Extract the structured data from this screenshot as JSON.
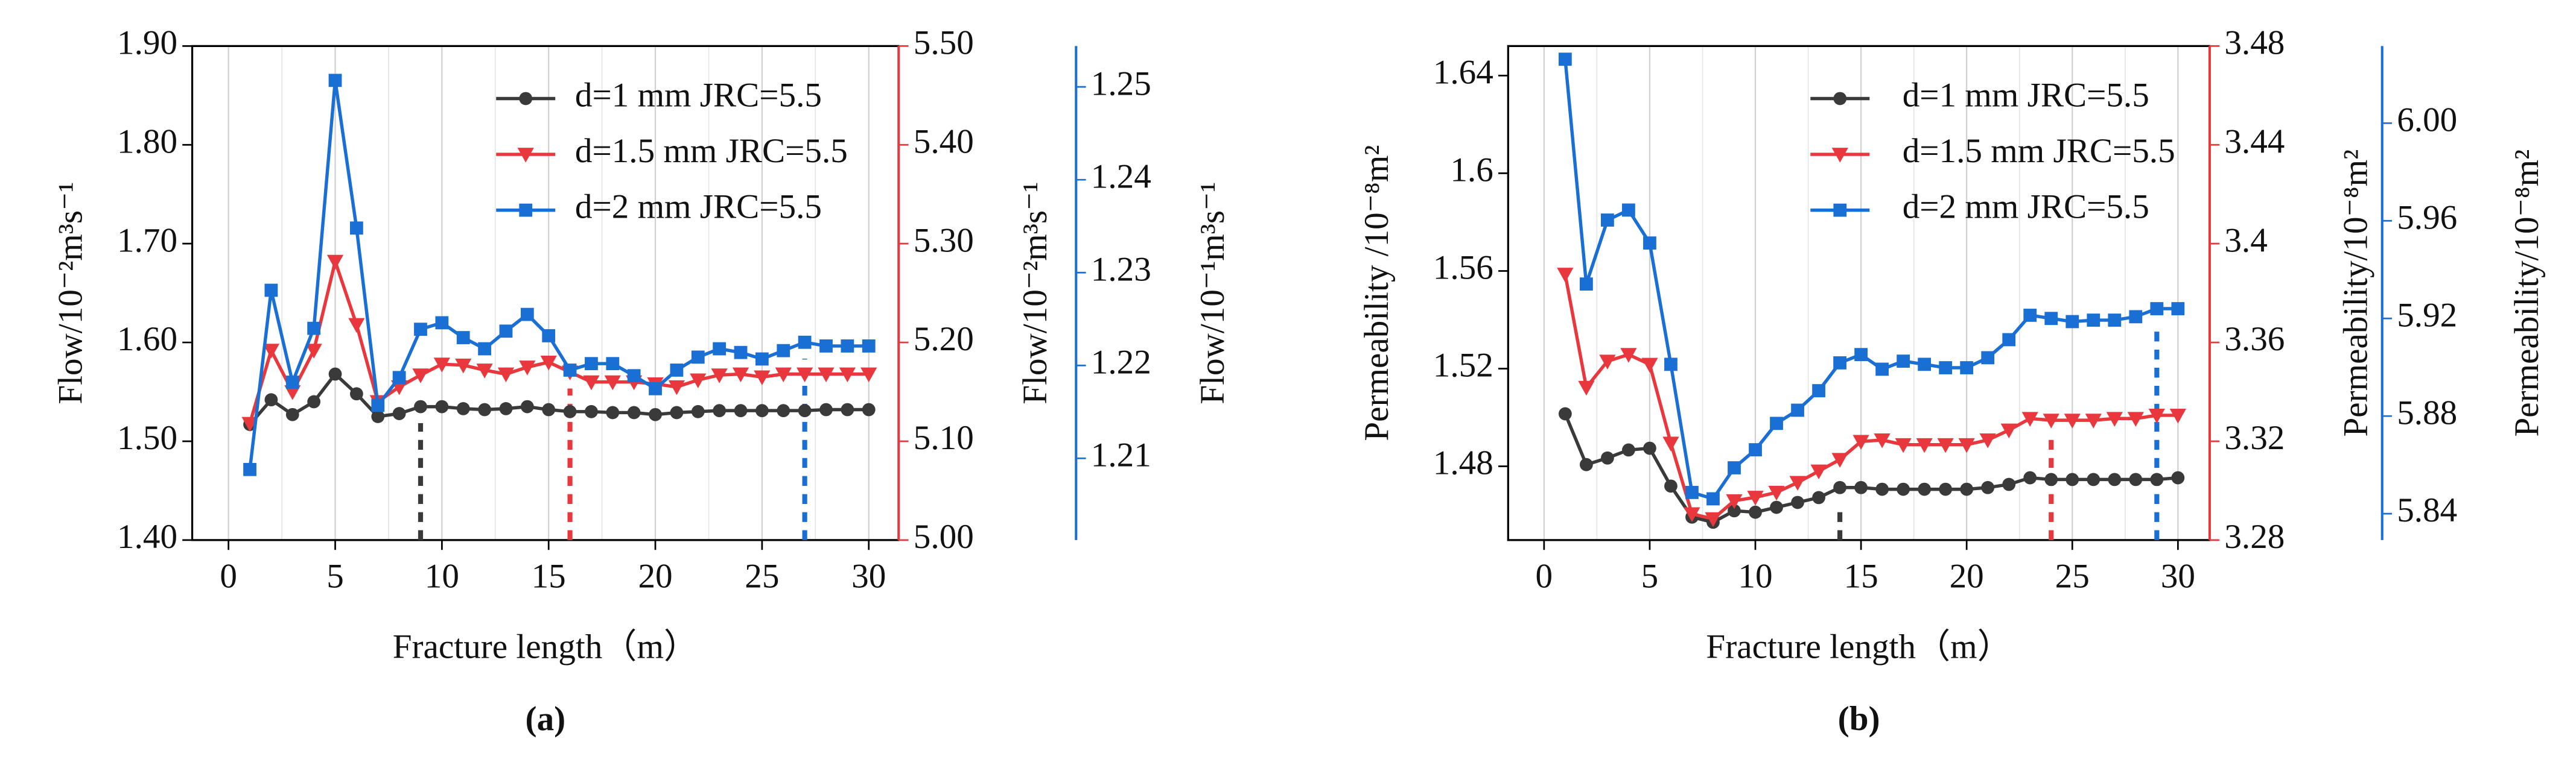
{
  "chart_data": [
    {
      "type": "line",
      "caption": "(a)",
      "xlabel": "Fracture length（m）",
      "ylabel": "Flow/10⁻²m³s⁻¹",
      "y2label": "Flow/10⁻²m³s⁻¹",
      "y3label": "Flow/10⁻¹m³s⁻¹",
      "x": [
        1,
        2,
        3,
        4,
        5,
        6,
        7,
        8,
        9,
        10,
        11,
        12,
        13,
        14,
        15,
        16,
        17,
        18,
        19,
        20,
        21,
        22,
        23,
        24,
        25,
        26,
        27,
        28,
        29,
        30
      ],
      "xlim": [
        -1.7,
        31.4
      ],
      "xticks": [
        0,
        5,
        10,
        15,
        20,
        25,
        30
      ],
      "ylim": [
        1.4,
        1.9
      ],
      "yticks": [
        {
          "value": 1.4,
          "label": "1.40"
        },
        {
          "value": 1.5,
          "label": "1.50"
        },
        {
          "value": 1.6,
          "label": "1.60"
        },
        {
          "value": 1.7,
          "label": "1.70"
        },
        {
          "value": 1.8,
          "label": "1.80"
        },
        {
          "value": 1.9,
          "label": "1.90"
        }
      ],
      "y2lim": [
        5.0,
        5.5
      ],
      "y2ticks": [
        {
          "value": 5,
          "label": "5.00"
        },
        {
          "value": 5.1,
          "label": "5.10"
        },
        {
          "value": 5.2,
          "label": "5.20"
        },
        {
          "value": 5.3,
          "label": "5.30"
        },
        {
          "value": 5.4,
          "label": "5.40"
        },
        {
          "value": 5.5,
          "label": "5.50"
        }
      ],
      "y3lim": [
        1.2012,
        1.2544
      ],
      "y3ticks": [
        1.21,
        1.22,
        1.23,
        1.24,
        1.25
      ],
      "grid": true,
      "markers_x": [
        9,
        16,
        27
      ],
      "series": [
        {
          "name": "d=1 mm JRC=5.5",
          "color": "#3a3a3a",
          "marker": "circle",
          "axis": "y",
          "values": [
            1.517,
            1.542,
            1.527,
            1.54,
            1.568,
            1.548,
            1.525,
            1.528,
            1.535,
            1.535,
            1.533,
            1.532,
            1.533,
            1.535,
            1.532,
            1.53,
            1.53,
            1.529,
            1.529,
            1.527,
            1.529,
            1.53,
            1.531,
            1.531,
            1.531,
            1.531,
            1.531,
            1.532,
            1.532,
            1.532
          ]
        },
        {
          "name": "d=1.5 mm JRC=5.5",
          "color": "#e8383d",
          "marker": "triangle",
          "axis": "y2",
          "values": [
            5.118,
            5.192,
            5.15,
            5.192,
            5.282,
            5.218,
            5.14,
            5.155,
            5.167,
            5.178,
            5.177,
            5.172,
            5.168,
            5.175,
            5.18,
            5.17,
            5.16,
            5.16,
            5.16,
            5.158,
            5.155,
            5.162,
            5.167,
            5.168,
            5.165,
            5.168,
            5.168,
            5.168,
            5.168,
            5.168
          ]
        },
        {
          "name": "d=2 mm JRC=5.5",
          "color": "#1a6fd4",
          "marker": "square",
          "axis": "y3",
          "values": [
            1.2088,
            1.2281,
            1.2182,
            1.224,
            1.2507,
            1.2348,
            1.2157,
            1.2187,
            1.2239,
            1.2246,
            1.223,
            1.2218,
            1.2237,
            1.2255,
            1.2232,
            1.2195,
            1.2202,
            1.2202,
            1.2189,
            1.2175,
            1.2195,
            1.2209,
            1.2218,
            1.2214,
            1.2207,
            1.2216,
            1.2225,
            1.2221,
            1.2221,
            1.2221
          ]
        }
      ]
    },
    {
      "type": "line",
      "caption": "(b)",
      "xlabel": "Fracture length（m）",
      "ylabel": "Permeability /10⁻⁸m²",
      "y2label": "Permeability/10⁻⁸m²",
      "y3label": "Permeability/10⁻⁸m²",
      "x": [
        1,
        2,
        3,
        4,
        5,
        6,
        7,
        8,
        9,
        10,
        11,
        12,
        13,
        14,
        15,
        16,
        17,
        18,
        19,
        20,
        21,
        22,
        23,
        24,
        25,
        26,
        27,
        28,
        29,
        30
      ],
      "xlim": [
        -1.7,
        31.5
      ],
      "xticks": [
        0,
        5,
        10,
        15,
        20,
        25,
        30
      ],
      "ylim": [
        1.4498,
        1.6521
      ],
      "yticks": [
        1.48,
        1.52,
        1.56,
        1.6,
        1.64
      ],
      "y2lim": [
        3.28,
        3.48
      ],
      "y2ticks": [
        3.28,
        3.32,
        3.36,
        3.4,
        3.44,
        3.48
      ],
      "y3lim": [
        5.8292,
        6.0316
      ],
      "y3ticks": [
        5.84,
        5.88,
        5.92,
        5.96,
        {
          "value": 6,
          "label": "6.00"
        }
      ],
      "grid": true,
      "markers_x": [
        14,
        24,
        29
      ],
      "series": [
        {
          "name": "d=1 mm JRC=5.5",
          "color": "#3a3a3a",
          "marker": "circle",
          "axis": "y",
          "values": [
            1.5015,
            1.4807,
            1.4834,
            1.4867,
            1.4874,
            1.4719,
            1.4592,
            1.4571,
            1.4618,
            1.4612,
            1.4632,
            1.4652,
            1.4672,
            1.4713,
            1.4713,
            1.4706,
            1.4706,
            1.4706,
            1.4706,
            1.4706,
            1.4713,
            1.4726,
            1.4753,
            1.4746,
            1.4746,
            1.4746,
            1.4746,
            1.4746,
            1.4746,
            1.4753
          ]
        },
        {
          "name": "d=1.5 mm JRC=5.5",
          "color": "#e8383d",
          "marker": "triangle",
          "axis": "y2",
          "values": [
            3.3876,
            3.3418,
            3.3524,
            3.3551,
            3.3511,
            3.3192,
            3.2906,
            3.2886,
            3.2959,
            3.2973,
            3.2993,
            3.3033,
            3.3079,
            3.3126,
            3.3199,
            3.3205,
            3.3186,
            3.3186,
            3.3186,
            3.3186,
            3.3205,
            3.3245,
            3.3292,
            3.3285,
            3.3285,
            3.3285,
            3.3292,
            3.3292,
            3.3305,
            3.3305
          ]
        },
        {
          "name": "d=2 mm JRC=5.5",
          "color": "#1a6fd4",
          "marker": "square",
          "axis": "y3",
          "values": [
            6.0262,
            5.9341,
            5.9603,
            5.9644,
            5.9509,
            5.9012,
            5.8487,
            5.8461,
            5.8588,
            5.8662,
            5.877,
            5.8824,
            5.8904,
            5.9018,
            5.9052,
            5.8992,
            5.9025,
            5.9012,
            5.8998,
            5.8998,
            5.9039,
            5.9113,
            5.9213,
            5.92,
            5.9187,
            5.9193,
            5.9193,
            5.9207,
            5.924,
            5.924
          ]
        }
      ]
    }
  ]
}
